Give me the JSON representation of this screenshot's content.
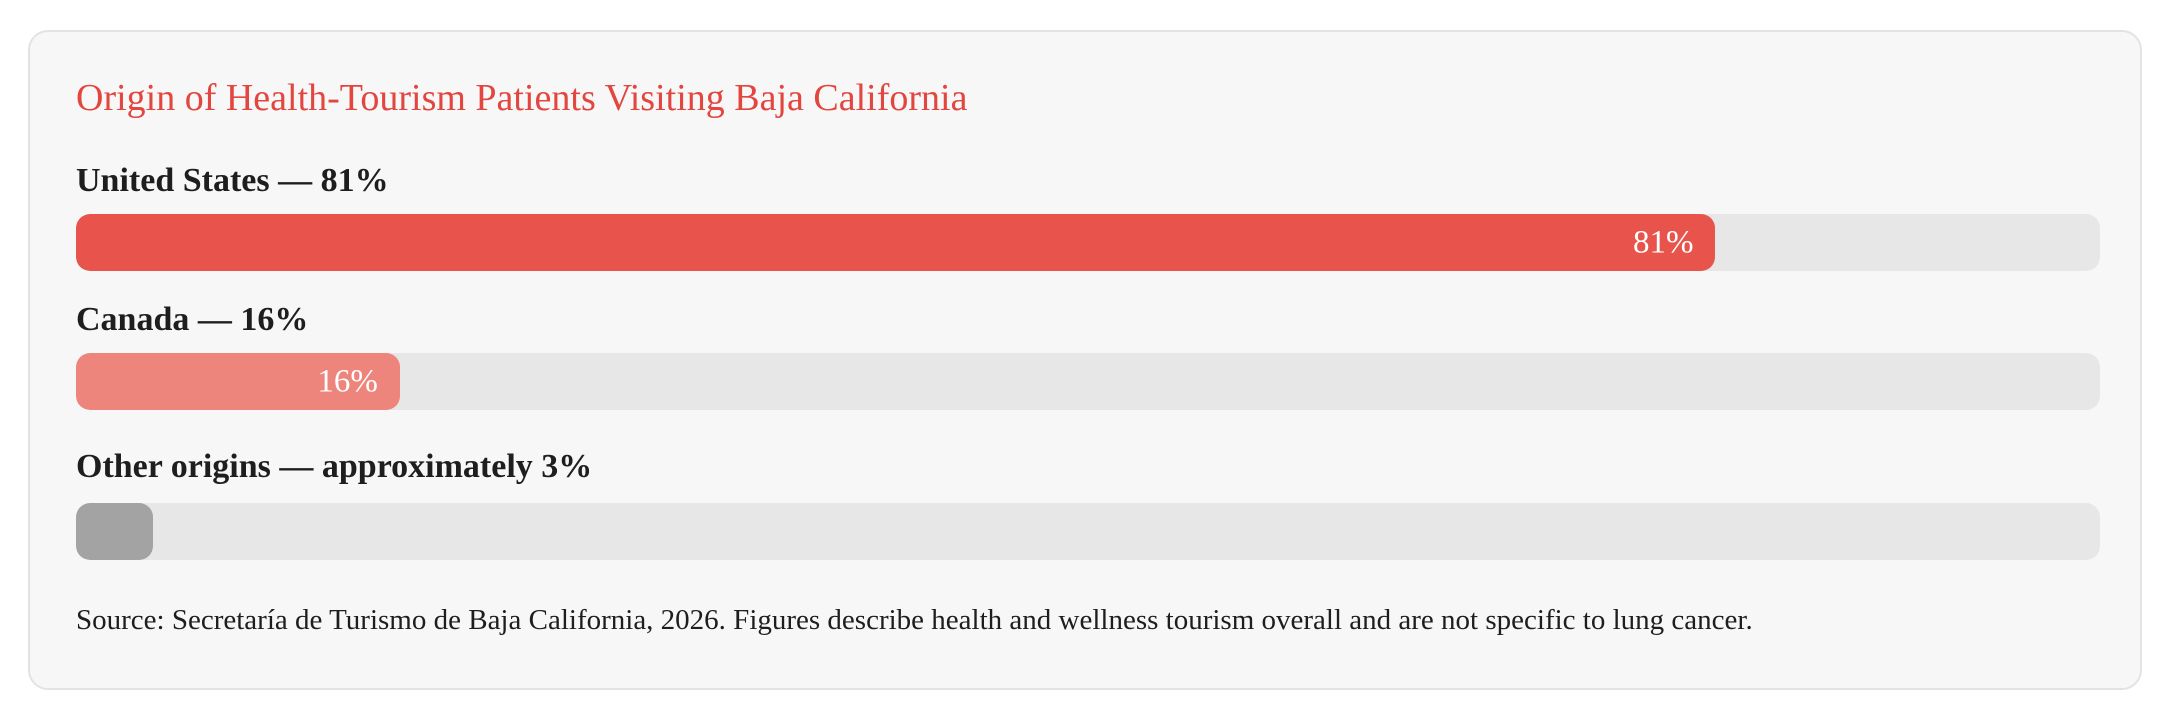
{
  "chart_data": {
    "type": "bar",
    "orientation": "horizontal",
    "title": "Origin of Health-Tourism Patients Visiting Baja California",
    "unit": "%",
    "xlim": [
      0,
      100
    ],
    "grid": false,
    "legend": "none",
    "rows": [
      {
        "label": "United States — 81%",
        "category": "United States",
        "value": 81,
        "value_label": "81%",
        "color": "#e8534b"
      },
      {
        "label": "Canada — 16%",
        "category": "Canada",
        "value": 16,
        "value_label": "16%",
        "color": "#ee857c"
      },
      {
        "label": "Other origins — approximately 3%",
        "category": "Other origins",
        "value": 3.8,
        "value_label": "",
        "color": "#a3a3a3"
      }
    ],
    "source": "Source: Secretaría de Turismo de Baja California, 2026. Figures describe health and wellness tourism overall and are not specific to lung cancer."
  },
  "colors": {
    "title": "#e2463f",
    "track": "#e7e7e7",
    "card_background": "#f7f7f7",
    "text": "#1e1e1e"
  }
}
